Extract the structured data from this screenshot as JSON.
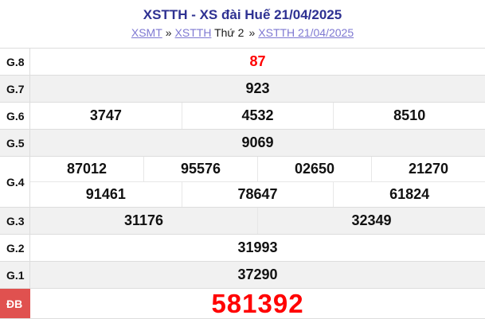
{
  "page": {
    "title": "XSTTH - XS đài Huế 21/04/2025"
  },
  "breadcrumb": {
    "link_xsmt": "XSMT",
    "sep1": "»",
    "link_xstth": "XSTTH",
    "day_label": "Thứ 2",
    "sep2": "»",
    "link_date": "XSTTH 21/04/2025"
  },
  "results": {
    "rows": [
      {
        "label": "G.8",
        "values": [
          "87"
        ]
      },
      {
        "label": "G.7",
        "values": [
          "923"
        ]
      },
      {
        "label": "G.6",
        "values": [
          "3747",
          "4532",
          "8510"
        ]
      },
      {
        "label": "G.5",
        "values": [
          "9069"
        ]
      },
      {
        "label": "G.4",
        "line1": [
          "87012",
          "95576",
          "02650",
          "21270"
        ],
        "line2": [
          "91461",
          "78647",
          "61824"
        ]
      },
      {
        "label": "G.3",
        "values": [
          "31176",
          "32349"
        ]
      },
      {
        "label": "G.2",
        "values": [
          "31993"
        ]
      },
      {
        "label": "G.1",
        "values": [
          "37290"
        ]
      },
      {
        "label": "ĐB",
        "values": [
          "581392"
        ]
      }
    ]
  },
  "colors": {
    "title": "#2e3192",
    "link": "#7e78d2",
    "highlight_red": "#ff0000",
    "db_label_bg": "#e0514f",
    "row_alt_bg": "#f1f1f1"
  }
}
